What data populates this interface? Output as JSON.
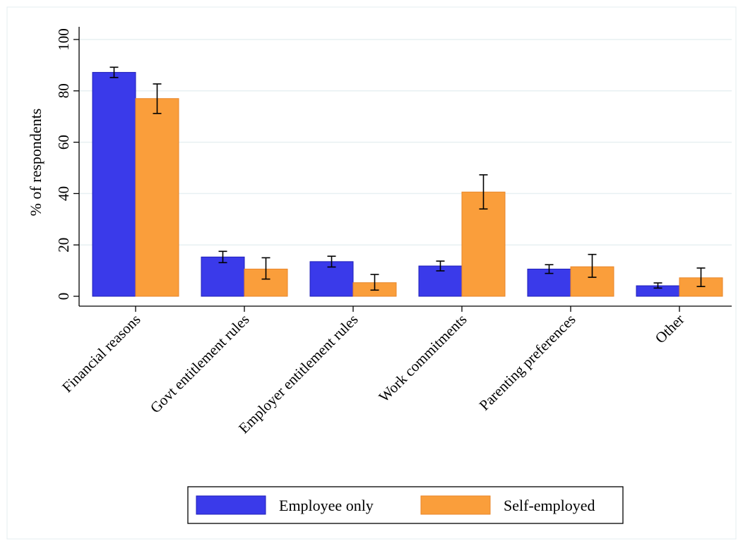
{
  "chart_data": {
    "type": "bar",
    "title": "",
    "xlabel": "",
    "ylabel": "% of respondents",
    "ylim": [
      0,
      100
    ],
    "yticks": [
      0,
      20,
      40,
      60,
      80,
      100
    ],
    "grid": true,
    "legend_position": "bottom",
    "categories": [
      "Financial reasons",
      "Govt entitlement rules",
      "Employer entitlement rules",
      "Work commitments",
      "Parenting preferences",
      "Other"
    ],
    "series": [
      {
        "name": "Employee only",
        "color": "#3a3aea",
        "values": [
          87.2,
          15.3,
          13.5,
          11.8,
          10.6,
          4.1
        ],
        "ci_low": [
          85.2,
          13.1,
          11.4,
          9.9,
          8.9,
          3.2
        ],
        "ci_high": [
          89.2,
          17.5,
          15.6,
          13.7,
          12.3,
          5.2
        ]
      },
      {
        "name": "Self-employed",
        "color": "#fa9e3b",
        "values": [
          77.0,
          10.6,
          5.3,
          40.6,
          11.5,
          7.2
        ],
        "ci_low": [
          71.2,
          6.7,
          2.4,
          34.0,
          7.4,
          3.8
        ],
        "ci_high": [
          82.7,
          15.0,
          8.5,
          47.3,
          16.3,
          11.0
        ]
      }
    ]
  }
}
